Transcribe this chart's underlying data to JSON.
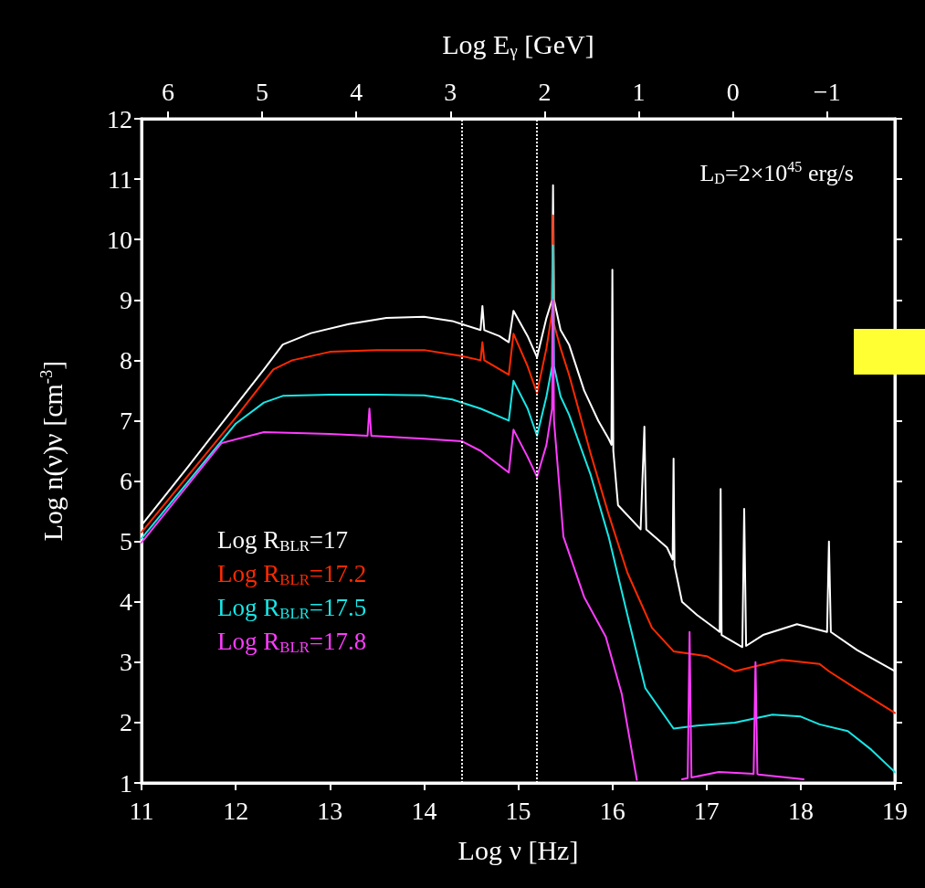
{
  "chart_data": {
    "type": "line",
    "xlabel": "Log ν [Hz]",
    "ylabel": "Log n(ν)ν [cm$^{-3}$]",
    "x2label": "Log E$_{γ}$ [GeV]",
    "annotations": [
      "L$_{D}$=2×10$^{45}$ erg/s"
    ],
    "xlim": [
      11,
      19
    ],
    "xticks": [
      11,
      12,
      13,
      14,
      15,
      16,
      17,
      18,
      19
    ],
    "ylim": [
      1,
      12
    ],
    "yticks": [
      1,
      2,
      3,
      4,
      5,
      6,
      7,
      8,
      9,
      10,
      11,
      12
    ],
    "x2lim": [
      6.28,
      -1.72
    ],
    "x2ticks": [
      6,
      5,
      4,
      3,
      2,
      1,
      0,
      {
        "value": -1,
        "label": "−1"
      }
    ],
    "ref_lines": [
      {
        "axis": "x",
        "value": 14.4,
        "color": "#ffffff",
        "line_style": "dotted"
      },
      {
        "axis": "x",
        "value": 15.2,
        "color": "#ffffff",
        "line_style": "dotted"
      }
    ],
    "legend": "bottom left",
    "grid": false,
    "marker": "none",
    "line_style": "solid",
    "series": [
      {
        "name": "Log R$_{BLR}$=17",
        "color": "#ffffff",
        "x": [
          11,
          11.5,
          12,
          12.3,
          12.5,
          12.8,
          13.2,
          13.6,
          14,
          14.3,
          14.4,
          14.6,
          14.62,
          14.64,
          14.8,
          14.9,
          14.95,
          15.1,
          15.2,
          15.3,
          15.36,
          15.37,
          15.38,
          15.45,
          15.54,
          15.7,
          15.85,
          15.96,
          15.99,
          16.0,
          16.01,
          16.06,
          16.3,
          16.34,
          16.36,
          16.58,
          16.64,
          16.65,
          16.66,
          16.74,
          16.9,
          17.1,
          17.14,
          17.15,
          17.16,
          17.38,
          17.4,
          17.42,
          17.6,
          17.96,
          18.28,
          18.3,
          18.32,
          18.6,
          19
        ],
        "values": [
          5.27,
          6.25,
          7.25,
          7.85,
          8.26,
          8.45,
          8.6,
          8.7,
          8.72,
          8.65,
          8.6,
          8.5,
          8.9,
          8.5,
          8.4,
          8.3,
          8.82,
          8.4,
          8.05,
          8.7,
          9.0,
          10.9,
          9.0,
          8.5,
          8.26,
          7.5,
          7.0,
          6.7,
          6.6,
          9.5,
          6.5,
          5.6,
          5.2,
          6.9,
          5.2,
          4.9,
          4.7,
          6.37,
          4.6,
          4.0,
          3.78,
          3.55,
          3.5,
          5.87,
          3.45,
          3.25,
          5.54,
          3.27,
          3.45,
          3.63,
          3.5,
          5.0,
          3.5,
          3.2,
          2.85
        ]
      },
      {
        "name": "Log R$_{BLR}$=17.2",
        "color": "#ff2a00",
        "x": [
          11,
          11.5,
          12,
          12.2,
          12.4,
          12.6,
          13,
          13.5,
          14,
          14.4,
          14.6,
          14.62,
          14.64,
          14.9,
          14.95,
          15.1,
          15.2,
          15.3,
          15.36,
          15.37,
          15.38,
          15.45,
          15.54,
          15.77,
          15.96,
          16.16,
          16.42,
          16.65,
          17.0,
          17.3,
          17.8,
          18.2,
          18.3,
          18.6,
          19
        ],
        "values": [
          5.15,
          6.1,
          7.05,
          7.45,
          7.85,
          8.0,
          8.14,
          8.17,
          8.17,
          8.07,
          8.0,
          8.3,
          8.0,
          7.76,
          8.44,
          7.9,
          7.46,
          8.2,
          8.8,
          10.4,
          8.6,
          8.2,
          7.76,
          6.45,
          5.45,
          4.48,
          3.57,
          3.18,
          3.1,
          2.85,
          3.04,
          2.97,
          2.85,
          2.55,
          2.16
        ]
      },
      {
        "name": "Log R$_{BLR}$=17.5",
        "color": "#19e6e6",
        "x": [
          11,
          11.5,
          12,
          12.3,
          12.5,
          13,
          13.5,
          14,
          14.3,
          14.4,
          14.6,
          14.9,
          14.95,
          15.1,
          15.2,
          15.3,
          15.36,
          15.37,
          15.38,
          15.45,
          15.54,
          15.77,
          15.96,
          16.16,
          16.35,
          16.65,
          16.9,
          17.3,
          17.7,
          18.0,
          18.2,
          18.5,
          18.75,
          19
        ],
        "values": [
          5.05,
          6.0,
          6.95,
          7.3,
          7.41,
          7.43,
          7.43,
          7.42,
          7.35,
          7.3,
          7.2,
          7.0,
          7.66,
          7.2,
          6.75,
          7.4,
          7.9,
          9.9,
          7.9,
          7.4,
          7.1,
          6.1,
          5.08,
          3.78,
          2.57,
          1.9,
          1.95,
          2.0,
          2.13,
          2.1,
          1.97,
          1.86,
          1.55,
          1.18
        ]
      },
      {
        "name": "Log R$_{BLR}$=17.8",
        "color": "#ff3cff",
        "x": [
          11,
          11.5,
          11.85,
          12.3,
          13,
          13.4,
          13.42,
          13.44,
          14,
          14.4,
          14.6,
          14.9,
          14.95,
          15.1,
          15.2,
          15.3,
          15.36,
          15.37,
          15.38,
          15.48,
          15.7,
          15.93,
          16.1,
          16.26,
          16.3,
          16.74,
          16.8,
          16.82,
          16.84,
          17.13,
          17.5,
          17.52,
          17.54,
          17.55,
          18.03
        ],
        "values": [
          4.98,
          5.95,
          6.63,
          6.81,
          6.78,
          6.75,
          7.2,
          6.75,
          6.7,
          6.66,
          6.5,
          6.14,
          6.85,
          6.4,
          6.07,
          6.6,
          7.2,
          9.0,
          7.0,
          5.08,
          4.08,
          3.42,
          2.47,
          1.05,
          null,
          1.06,
          1.08,
          3.5,
          1.09,
          1.18,
          1.15,
          3.0,
          1.15,
          1.14,
          1.06
        ]
      }
    ]
  }
}
